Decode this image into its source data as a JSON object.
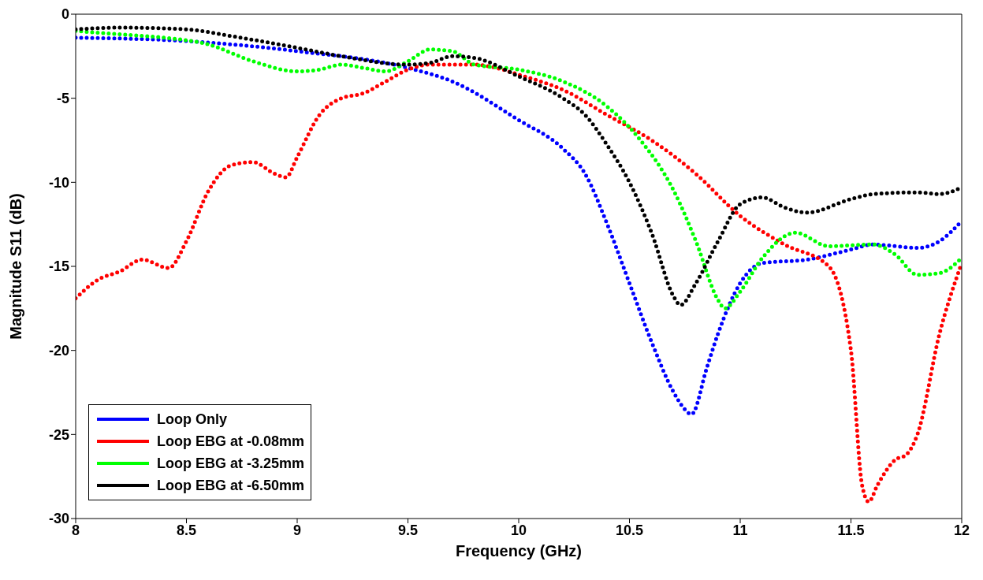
{
  "chart_data": {
    "type": "line",
    "xlabel": "Frequency (GHz)",
    "ylabel": "Magnitude S11 (dB)",
    "xlim": [
      8,
      12
    ],
    "ylim": [
      -30,
      0
    ],
    "xticks": [
      8,
      8.5,
      9,
      9.5,
      10,
      10.5,
      11,
      11.5,
      12
    ],
    "yticks": [
      -30,
      -25,
      -20,
      -15,
      -10,
      -5,
      0
    ],
    "grid": false,
    "legend": "bottom left",
    "line_style": "dotted",
    "series": [
      {
        "name": "Loop Only",
        "color": "#0000ff",
        "x": [
          8,
          8.5,
          9,
          9.5,
          9.7,
          10,
          10.2,
          10.3,
          10.4,
          10.5,
          10.6,
          10.7,
          10.75,
          10.78,
          10.85,
          10.9,
          11,
          11.1,
          11.3,
          11.5,
          11.6,
          11.8,
          11.9,
          12
        ],
        "values": [
          -1.4,
          -1.6,
          -2.2,
          -3.2,
          -4.0,
          -6.3,
          -8.0,
          -9.5,
          -12.5,
          -16,
          -19.5,
          -22.5,
          -23.5,
          -23.8,
          -21,
          -19,
          -16,
          -14.8,
          -14.6,
          -14,
          -13.7,
          -13.9,
          -13.5,
          -12.3
        ]
      },
      {
        "name": "Loop EBG at -0.08mm",
        "color": "#ff0000",
        "x": [
          8,
          8.1,
          8.2,
          8.3,
          8.42,
          8.5,
          8.6,
          8.7,
          8.8,
          8.9,
          8.95,
          9.0,
          9.1,
          9.2,
          9.3,
          9.4,
          9.5,
          9.6,
          9.8,
          9.9,
          10,
          10.2,
          10.4,
          10.6,
          10.8,
          11,
          11.2,
          11.4,
          11.5,
          11.55,
          11.58,
          11.62,
          11.7,
          11.75,
          11.8,
          11.9,
          12
        ],
        "values": [
          -16.9,
          -15.8,
          -15.3,
          -14.6,
          -15.1,
          -13.5,
          -10.5,
          -9,
          -8.8,
          -9.5,
          -9.7,
          -8.5,
          -6,
          -5,
          -4.7,
          -4,
          -3.3,
          -3.0,
          -3.0,
          -3.2,
          -3.6,
          -4.5,
          -6,
          -7.5,
          -9.5,
          -12,
          -13.7,
          -15,
          -20,
          -28,
          -29,
          -28,
          -26.5,
          -26.2,
          -25,
          -19,
          -14.8
        ]
      },
      {
        "name": "Loop EBG at -3.25mm",
        "color": "#00ff00",
        "x": [
          8,
          8.2,
          8.4,
          8.6,
          8.8,
          9.0,
          9.1,
          9.2,
          9.3,
          9.4,
          9.5,
          9.6,
          9.7,
          9.8,
          10,
          10.2,
          10.4,
          10.55,
          10.7,
          10.8,
          10.9,
          10.93,
          11.0,
          11.1,
          11.25,
          11.4,
          11.6,
          11.7,
          11.8,
          11.9,
          12
        ],
        "values": [
          -1.0,
          -1.2,
          -1.4,
          -1.8,
          -2.8,
          -3.4,
          -3.3,
          -3.0,
          -3.2,
          -3.4,
          -2.8,
          -2.1,
          -2.2,
          -3.0,
          -3.3,
          -4.0,
          -5.5,
          -7.5,
          -10.5,
          -13.5,
          -17,
          -17.5,
          -16.5,
          -14.5,
          -13,
          -13.8,
          -13.7,
          -14.3,
          -15.5,
          -15.4,
          -14.5
        ]
      },
      {
        "name": "Loop EBG at -6.50mm",
        "color": "#000000",
        "x": [
          8,
          8.2,
          8.5,
          8.7,
          9.0,
          9.2,
          9.5,
          9.6,
          9.7,
          9.8,
          10,
          10.2,
          10.3,
          10.4,
          10.5,
          10.6,
          10.7,
          10.73,
          10.8,
          10.9,
          11.0,
          11.1,
          11.2,
          11.3,
          11.5,
          11.6,
          11.8,
          11.9,
          12
        ],
        "values": [
          -0.9,
          -0.8,
          -0.9,
          -1.3,
          -2.0,
          -2.5,
          -3.0,
          -2.9,
          -2.5,
          -2.6,
          -3.7,
          -5,
          -6,
          -7.8,
          -10,
          -13,
          -16.8,
          -17.3,
          -16,
          -13.5,
          -11.3,
          -10.9,
          -11.5,
          -11.8,
          -11,
          -10.7,
          -10.6,
          -10.7,
          -10.3
        ]
      }
    ]
  }
}
